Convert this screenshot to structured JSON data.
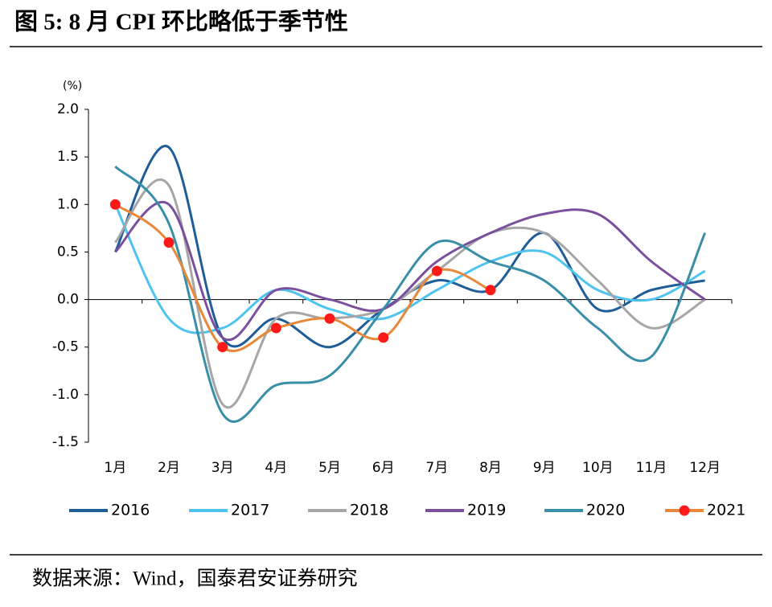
{
  "chart_data": {
    "type": "line",
    "title": "图 5:  8 月 CPI 环比略低于季节性",
    "y_unit": "(%)",
    "source": "数据来源：Wind，国泰君安证券研究",
    "categories": [
      "1月",
      "2月",
      "3月",
      "4月",
      "5月",
      "6月",
      "7月",
      "8月",
      "9月",
      "10月",
      "11月",
      "12月"
    ],
    "ylim": [
      -1.5,
      2.0
    ],
    "yticks": [
      {
        "value": 2.0,
        "label": "2.0"
      },
      {
        "value": 1.5,
        "label": "1.5"
      },
      {
        "value": 1.0,
        "label": "1.0"
      },
      {
        "value": 0.5,
        "label": "0.5"
      },
      {
        "value": 0,
        "label": "0.0"
      },
      {
        "value": -0.5,
        "label": "-0.5"
      },
      {
        "value": -1.0,
        "label": "-1.0"
      },
      {
        "value": -1.5,
        "label": "-1.5"
      }
    ],
    "series": [
      {
        "name": "2016",
        "color": "#1f5d99",
        "values": [
          0.5,
          1.6,
          -0.4,
          -0.2,
          -0.5,
          -0.1,
          0.2,
          0.1,
          0.7,
          -0.1,
          0.1,
          0.2
        ]
      },
      {
        "name": "2017",
        "color": "#4fc3f0",
        "values": [
          1.0,
          -0.2,
          -0.3,
          0.1,
          -0.1,
          -0.2,
          0.1,
          0.4,
          0.5,
          0.1,
          0.0,
          0.3
        ]
      },
      {
        "name": "2018",
        "color": "#a6a6a6",
        "values": [
          0.6,
          1.2,
          -1.1,
          -0.2,
          -0.2,
          -0.1,
          0.3,
          0.7,
          0.7,
          0.2,
          -0.3,
          0.0
        ]
      },
      {
        "name": "2019",
        "color": "#7a509e",
        "values": [
          0.5,
          1.0,
          -0.4,
          0.1,
          0.0,
          -0.1,
          0.4,
          0.7,
          0.9,
          0.9,
          0.4,
          0.0
        ]
      },
      {
        "name": "2020",
        "color": "#3a8fa8",
        "values": [
          1.4,
          0.8,
          -1.2,
          -0.9,
          -0.8,
          -0.1,
          0.6,
          0.4,
          0.2,
          -0.3,
          -0.6,
          0.7
        ]
      },
      {
        "name": "2021",
        "color": "#e8883a",
        "marker_color": "#ff1a1a",
        "values": [
          1.0,
          0.6,
          -0.5,
          -0.3,
          -0.2,
          -0.4,
          0.3,
          0.1,
          null,
          null,
          null,
          null
        ]
      }
    ]
  }
}
